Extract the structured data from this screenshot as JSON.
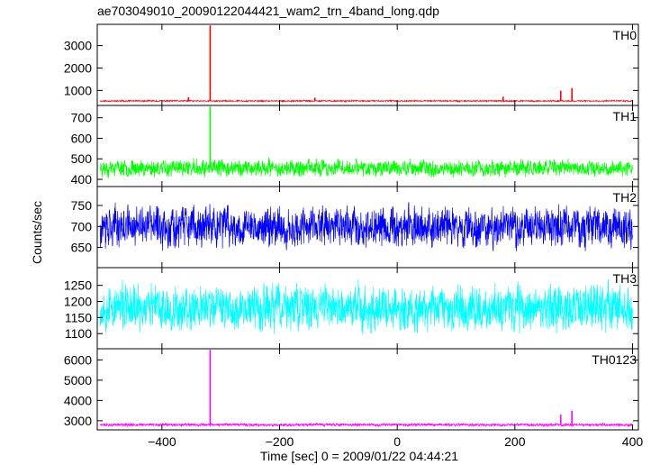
{
  "chart_data": {
    "type": "line",
    "title": "ae703049010_20090122044421_wam2_trn_4band_long.qdp",
    "xlabel": "Time [sec] 0 = 2009/01/22 04:44:21",
    "ylabel": "Counts/sec",
    "xlim": [
      -510,
      410
    ],
    "x_ticks": [
      -400,
      -200,
      0,
      200,
      400
    ],
    "x_tick_labels": [
      "−400",
      "−200",
      "0",
      "200",
      "400"
    ],
    "panels": [
      {
        "name": "TH0",
        "color": "#ff0000",
        "ylim": [
          330,
          3950
        ],
        "y_ticks": [
          1000,
          2000,
          3000
        ],
        "y_tick_labels": [
          "1000",
          "2000",
          "3000"
        ],
        "base": 530,
        "noise": 30,
        "range": [
          -505,
          400
        ],
        "seed": 11,
        "spikes": [
          {
            "x": -318,
            "y": 3900
          },
          {
            "x": -355,
            "y": 700
          },
          {
            "x": -140,
            "y": 680
          },
          {
            "x": 180,
            "y": 720
          },
          {
            "x": 278,
            "y": 990
          },
          {
            "x": 297,
            "y": 1100
          }
        ]
      },
      {
        "name": "TH1",
        "color": "#00ff00",
        "ylim": [
          365,
          760
        ],
        "y_ticks": [
          400,
          500,
          600,
          700
        ],
        "y_tick_labels": [
          "400",
          "500",
          "600",
          "700"
        ],
        "base": 455,
        "noise": 40,
        "range": [
          -505,
          400
        ],
        "seed": 23,
        "spikes": [
          {
            "x": -318,
            "y": 755
          }
        ]
      },
      {
        "name": "TH2",
        "color": "#0000ff",
        "ylim": [
          602,
          795
        ],
        "y_ticks": [
          650,
          700,
          750
        ],
        "y_tick_labels": [
          "650",
          "700",
          "750"
        ],
        "base": 700,
        "noise": 48,
        "range": [
          -505,
          400
        ],
        "seed": 37,
        "spikes": []
      },
      {
        "name": "TH3",
        "color": "#00ffff",
        "ylim": [
          1053,
          1305
        ],
        "y_ticks": [
          1100,
          1150,
          1200,
          1250
        ],
        "y_tick_labels": [
          "1100",
          "1150",
          "1200",
          "1250"
        ],
        "base": 1180,
        "noise": 70,
        "range": [
          -505,
          400
        ],
        "seed": 53,
        "spikes": []
      },
      {
        "name": "TH0123",
        "color": "#ff00ff",
        "ylim": [
          2550,
          6550
        ],
        "y_ticks": [
          3000,
          4000,
          5000,
          6000
        ],
        "y_tick_labels": [
          "3000",
          "4000",
          "5000",
          "6000"
        ],
        "base": 2800,
        "noise": 70,
        "range": [
          -505,
          400
        ],
        "seed": 71,
        "spikes": [
          {
            "x": -318,
            "y": 6500
          },
          {
            "x": 278,
            "y": 3300
          },
          {
            "x": 297,
            "y": 3500
          }
        ]
      }
    ]
  }
}
